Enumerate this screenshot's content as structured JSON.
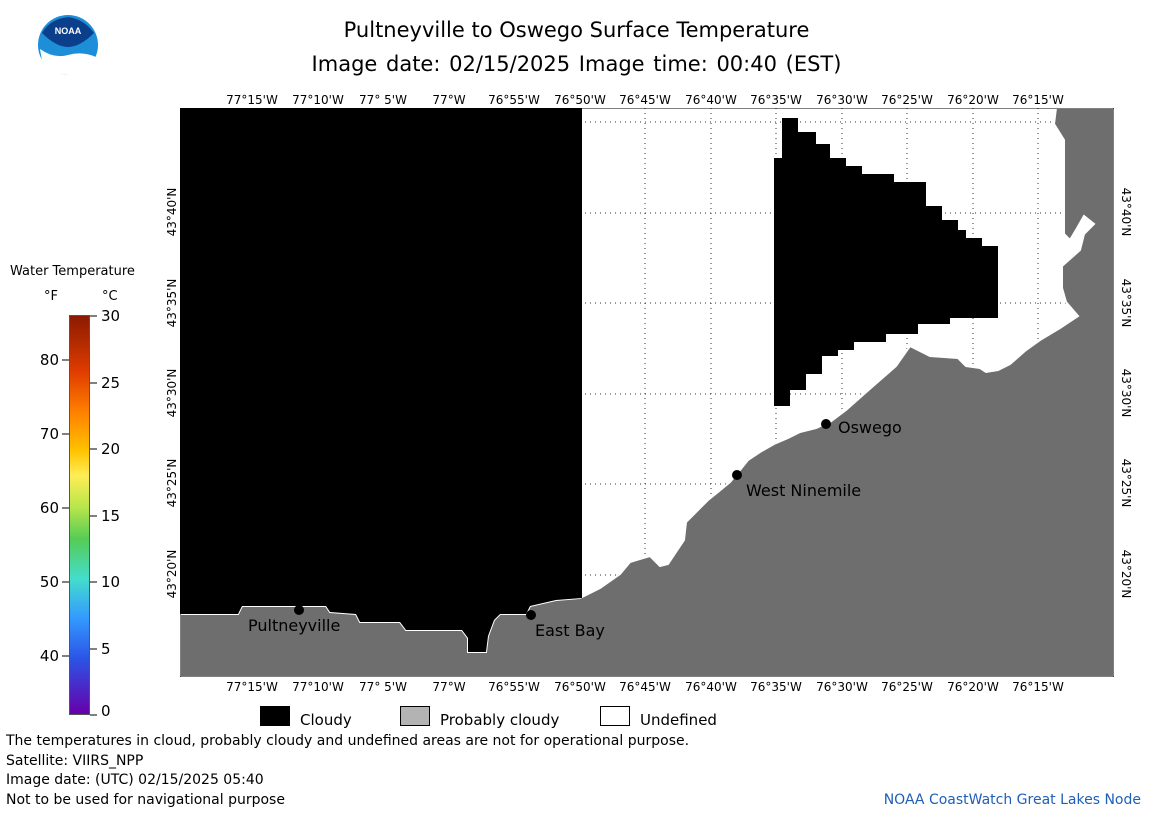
{
  "title": "Pultneyville to Oswego Surface Temperature",
  "subtitle": "Image date: 02/15/2025    Image time: 00:40 (EST)",
  "logo_text": "NOAA",
  "lon_labels": [
    "77°15'W",
    "77°10'W",
    "77° 5'W",
    "77°W",
    "76°55'W",
    "76°50'W",
    "76°45'W",
    "76°40'W",
    "76°35'W",
    "76°30'W",
    "76°25'W",
    "76°20'W",
    "76°15'W"
  ],
  "lat_labels": [
    "43°40'N",
    "43°35'N",
    "43°30'N",
    "43°25'N",
    "43°20'N"
  ],
  "places": [
    {
      "name": "Oswego"
    },
    {
      "name": "West Ninemile"
    },
    {
      "name": "East Bay"
    },
    {
      "name": "Pultneyville"
    }
  ],
  "legend": {
    "title": "Water Temperature",
    "unit_f": "°F",
    "unit_c": "°C",
    "ticks_f": [
      "80",
      "70",
      "60",
      "50",
      "40"
    ],
    "ticks_c": [
      "30",
      "25",
      "20",
      "15",
      "10",
      "5",
      "0"
    ],
    "colors": {
      "hot": "#8b1a00",
      "orange": "#ff7f00",
      "yellow": "#ffee55",
      "green": "#55cc55",
      "cyan": "#44ddcc",
      "blue": "#3399ff",
      "purple": "#6600aa"
    }
  },
  "key": {
    "cloudy": "Cloudy",
    "probably_cloudy": "Probably cloudy",
    "undefined": "Undefined",
    "colors": {
      "cloudy": "#000000",
      "probably_cloudy": "#b3b3b3",
      "undefined": "#ffffff",
      "land": "#6e6e6e"
    }
  },
  "notes": [
    "The temperatures in cloud, probably cloudy and undefined areas are not for operational purpose.",
    "Satellite: VIIRS_NPP",
    "Image date: (UTC) 02/15/2025  05:40",
    "Not to be used for navigational purpose"
  ],
  "credit": "NOAA CoastWatch Great Lakes Node"
}
